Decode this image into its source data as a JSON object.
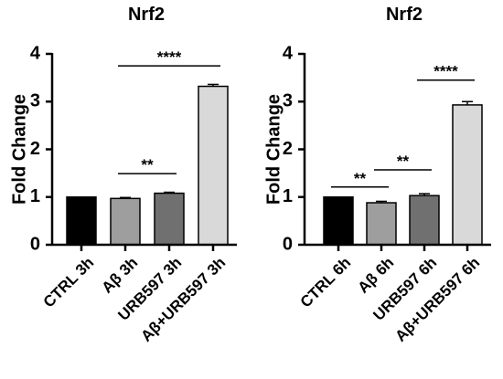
{
  "chart_data": [
    {
      "type": "bar",
      "title": "Nrf2",
      "ylabel": "Fold Change",
      "xlabel": "",
      "ylim": [
        0,
        4
      ],
      "yticks": [
        "0",
        "1",
        "2",
        "3",
        "4"
      ],
      "categories": [
        "CTRL 3h",
        "Aβ 3h",
        "URB597 3h",
        "Aβ+URB597 3h"
      ],
      "values": [
        1.0,
        0.97,
        1.08,
        3.32
      ],
      "errors": [
        0.0,
        0.02,
        0.02,
        0.04
      ],
      "colors": [
        "#000000",
        "#9e9e9e",
        "#707070",
        "#d9d9d9"
      ],
      "significance": [
        {
          "from": 1,
          "to": 2,
          "label": "**",
          "y": 1.49
        },
        {
          "from": 1,
          "to": 3,
          "label": "****",
          "y": 3.75
        }
      ]
    },
    {
      "type": "bar",
      "title": "Nrf2",
      "ylabel": "Fold Change",
      "xlabel": "",
      "ylim": [
        0,
        4
      ],
      "yticks": [
        "0",
        "1",
        "2",
        "3",
        "4"
      ],
      "categories": [
        "CTRL 6h",
        "Aβ 6h",
        "URB597 6h",
        "Aβ+URB597 6h"
      ],
      "values": [
        1.0,
        0.88,
        1.03,
        2.93
      ],
      "errors": [
        0.0,
        0.03,
        0.04,
        0.07
      ],
      "colors": [
        "#000000",
        "#9e9e9e",
        "#707070",
        "#d9d9d9"
      ],
      "significance": [
        {
          "from": 0,
          "to": 1,
          "label": "**",
          "y": 1.21
        },
        {
          "from": 1,
          "to": 2,
          "label": "**",
          "y": 1.57
        },
        {
          "from": 2,
          "to": 3,
          "label": "****",
          "y": 3.45
        }
      ]
    }
  ]
}
